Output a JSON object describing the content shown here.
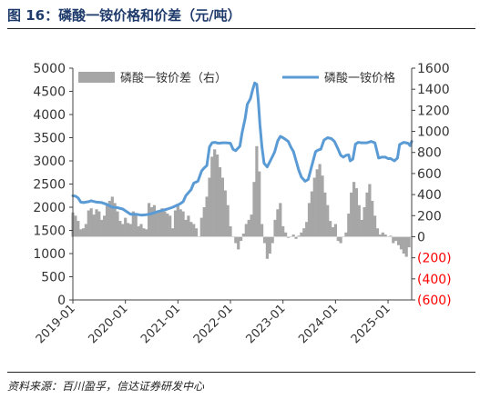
{
  "figure": {
    "title": "图 16：磷酸一铵价格和价差（元/吨）",
    "source": "资料来源：百川盈孚，信达证券研发中心"
  },
  "chart_data": {
    "type": "line",
    "legend_placement": "top",
    "grid": false,
    "colors": {
      "price": "#5b9bd5",
      "spread": "#a6a6a6",
      "negative_tick": "#ff0000"
    },
    "x_axis": {
      "ticks": [
        "2019-01",
        "2020-01",
        "2021-01",
        "2022-01",
        "2023-01",
        "2024-01",
        "2025-01"
      ],
      "range": [
        2019.0,
        2025.45
      ]
    },
    "y_left": {
      "ticks": [
        "0",
        "500",
        "1000",
        "1500",
        "2000",
        "2500",
        "3000",
        "3500",
        "4000",
        "4500",
        "5000"
      ],
      "range": [
        0,
        5000
      ]
    },
    "y_right": {
      "ticks": [
        "(600)",
        "(400)",
        "(200)",
        "0",
        "200",
        "400",
        "600",
        "800",
        "1000",
        "1200",
        "1400",
        "1600"
      ],
      "range": [
        -600,
        1600
      ]
    },
    "series": [
      {
        "name": "磷酸一铵价差（右）",
        "axis": "right",
        "kind": "bar",
        "points": [
          [
            2019.0,
            230
          ],
          [
            2019.05,
            200
          ],
          [
            2019.1,
            150
          ],
          [
            2019.15,
            70
          ],
          [
            2019.2,
            80
          ],
          [
            2019.25,
            120
          ],
          [
            2019.3,
            250
          ],
          [
            2019.35,
            270
          ],
          [
            2019.4,
            210
          ],
          [
            2019.45,
            260
          ],
          [
            2019.5,
            240
          ],
          [
            2019.55,
            160
          ],
          [
            2019.6,
            200
          ],
          [
            2019.65,
            300
          ],
          [
            2019.7,
            340
          ],
          [
            2019.75,
            380
          ],
          [
            2019.8,
            320
          ],
          [
            2019.85,
            240
          ],
          [
            2019.9,
            150
          ],
          [
            2019.95,
            120
          ],
          [
            2020.0,
            180
          ],
          [
            2020.05,
            130
          ],
          [
            2020.1,
            120
          ],
          [
            2020.15,
            240
          ],
          [
            2020.2,
            210
          ],
          [
            2020.25,
            100
          ],
          [
            2020.3,
            120
          ],
          [
            2020.35,
            80
          ],
          [
            2020.4,
            70
          ],
          [
            2020.45,
            320
          ],
          [
            2020.5,
            280
          ],
          [
            2020.55,
            300
          ],
          [
            2020.6,
            240
          ],
          [
            2020.65,
            250
          ],
          [
            2020.7,
            270
          ],
          [
            2020.75,
            240
          ],
          [
            2020.8,
            220
          ],
          [
            2020.85,
            200
          ],
          [
            2020.9,
            80
          ],
          [
            2020.95,
            250
          ],
          [
            2021.0,
            300
          ],
          [
            2021.05,
            260
          ],
          [
            2021.1,
            240
          ],
          [
            2021.15,
            160
          ],
          [
            2021.2,
            200
          ],
          [
            2021.25,
            140
          ],
          [
            2021.3,
            120
          ],
          [
            2021.35,
            80
          ],
          [
            2021.45,
            180
          ],
          [
            2021.5,
            280
          ],
          [
            2021.55,
            380
          ],
          [
            2021.6,
            560
          ],
          [
            2021.65,
            760
          ],
          [
            2021.7,
            830
          ],
          [
            2021.75,
            780
          ],
          [
            2021.8,
            660
          ],
          [
            2021.85,
            560
          ],
          [
            2021.9,
            440
          ],
          [
            2021.95,
            300
          ],
          [
            2022.0,
            100
          ],
          [
            2022.05,
            0
          ],
          [
            2022.1,
            -60
          ],
          [
            2022.15,
            -120
          ],
          [
            2022.2,
            -40
          ],
          [
            2022.25,
            30
          ],
          [
            2022.3,
            120
          ],
          [
            2022.35,
            160
          ],
          [
            2022.4,
            210
          ],
          [
            2022.45,
            520
          ],
          [
            2022.5,
            860
          ],
          [
            2022.55,
            620
          ],
          [
            2022.6,
            120
          ],
          [
            2022.65,
            -60
          ],
          [
            2022.7,
            -210
          ],
          [
            2022.75,
            -160
          ],
          [
            2022.8,
            -60
          ],
          [
            2022.85,
            160
          ],
          [
            2022.9,
            260
          ],
          [
            2022.95,
            320
          ],
          [
            2023.0,
            100
          ],
          [
            2023.05,
            40
          ],
          [
            2023.1,
            -10
          ],
          [
            2023.15,
            0
          ],
          [
            2023.2,
            20
          ],
          [
            2023.25,
            -20
          ],
          [
            2023.3,
            10
          ],
          [
            2023.35,
            40
          ],
          [
            2023.4,
            80
          ],
          [
            2023.45,
            140
          ],
          [
            2023.5,
            320
          ],
          [
            2023.55,
            430
          ],
          [
            2023.6,
            560
          ],
          [
            2023.65,
            640
          ],
          [
            2023.7,
            690
          ],
          [
            2023.75,
            580
          ],
          [
            2023.8,
            420
          ],
          [
            2023.85,
            300
          ],
          [
            2023.9,
            150
          ],
          [
            2023.95,
            90
          ],
          [
            2024.0,
            120
          ],
          [
            2024.05,
            -40
          ],
          [
            2024.1,
            -60
          ],
          [
            2024.15,
            0
          ],
          [
            2024.2,
            40
          ],
          [
            2024.25,
            220
          ],
          [
            2024.3,
            420
          ],
          [
            2024.35,
            520
          ],
          [
            2024.4,
            460
          ],
          [
            2024.45,
            300
          ],
          [
            2024.5,
            160
          ],
          [
            2024.55,
            280
          ],
          [
            2024.6,
            420
          ],
          [
            2024.65,
            500
          ],
          [
            2024.7,
            340
          ],
          [
            2024.75,
            200
          ],
          [
            2024.8,
            80
          ],
          [
            2024.85,
            20
          ],
          [
            2024.9,
            40
          ],
          [
            2024.95,
            20
          ],
          [
            2025.0,
            0
          ],
          [
            2025.05,
            10
          ],
          [
            2025.1,
            -60
          ],
          [
            2025.15,
            -40
          ],
          [
            2025.2,
            -80
          ],
          [
            2025.25,
            -120
          ],
          [
            2025.3,
            -160
          ],
          [
            2025.35,
            -190
          ],
          [
            2025.4,
            -100
          ]
        ]
      },
      {
        "name": "磷酸一铵价格",
        "axis": "left",
        "kind": "line",
        "points": [
          [
            2019.0,
            2250
          ],
          [
            2019.05,
            2240
          ],
          [
            2019.1,
            2200
          ],
          [
            2019.15,
            2110
          ],
          [
            2019.2,
            2100
          ],
          [
            2019.3,
            2120
          ],
          [
            2019.35,
            2140
          ],
          [
            2019.45,
            2110
          ],
          [
            2019.55,
            2100
          ],
          [
            2019.65,
            2060
          ],
          [
            2019.75,
            2000
          ],
          [
            2019.85,
            1990
          ],
          [
            2019.95,
            1960
          ],
          [
            2020.1,
            1850
          ],
          [
            2020.2,
            1850
          ],
          [
            2020.3,
            1830
          ],
          [
            2020.4,
            1840
          ],
          [
            2020.5,
            1860
          ],
          [
            2020.6,
            1900
          ],
          [
            2020.7,
            1930
          ],
          [
            2020.8,
            1960
          ],
          [
            2020.9,
            2000
          ],
          [
            2021.0,
            2050
          ],
          [
            2021.05,
            2080
          ],
          [
            2021.1,
            2120
          ],
          [
            2021.15,
            2250
          ],
          [
            2021.25,
            2380
          ],
          [
            2021.3,
            2520
          ],
          [
            2021.38,
            2560
          ],
          [
            2021.45,
            2780
          ],
          [
            2021.5,
            2850
          ],
          [
            2021.55,
            2900
          ],
          [
            2021.6,
            3300
          ],
          [
            2021.65,
            3390
          ],
          [
            2021.7,
            3400
          ],
          [
            2021.78,
            3380
          ],
          [
            2021.85,
            3390
          ],
          [
            2021.92,
            3390
          ],
          [
            2022.0,
            3380
          ],
          [
            2022.05,
            3250
          ],
          [
            2022.1,
            3220
          ],
          [
            2022.18,
            3320
          ],
          [
            2022.22,
            3600
          ],
          [
            2022.28,
            3920
          ],
          [
            2022.32,
            4220
          ],
          [
            2022.38,
            4340
          ],
          [
            2022.42,
            4520
          ],
          [
            2022.46,
            4680
          ],
          [
            2022.5,
            4650
          ],
          [
            2022.53,
            4300
          ],
          [
            2022.56,
            3800
          ],
          [
            2022.6,
            3300
          ],
          [
            2022.64,
            2950
          ],
          [
            2022.7,
            2870
          ],
          [
            2022.78,
            3050
          ],
          [
            2022.84,
            3190
          ],
          [
            2022.9,
            3430
          ],
          [
            2022.95,
            3530
          ],
          [
            2023.0,
            3500
          ],
          [
            2023.05,
            3460
          ],
          [
            2023.1,
            3420
          ],
          [
            2023.15,
            3300
          ],
          [
            2023.2,
            3200
          ],
          [
            2023.25,
            3000
          ],
          [
            2023.3,
            2800
          ],
          [
            2023.35,
            2650
          ],
          [
            2023.42,
            2560
          ],
          [
            2023.48,
            2600
          ],
          [
            2023.55,
            2900
          ],
          [
            2023.62,
            3200
          ],
          [
            2023.68,
            3240
          ],
          [
            2023.72,
            3250
          ],
          [
            2023.78,
            3450
          ],
          [
            2023.85,
            3500
          ],
          [
            2023.92,
            3480
          ],
          [
            2023.98,
            3420
          ],
          [
            2024.05,
            3250
          ],
          [
            2024.1,
            3120
          ],
          [
            2024.15,
            3080
          ],
          [
            2024.2,
            3120
          ],
          [
            2024.25,
            3130
          ],
          [
            2024.28,
            3000
          ],
          [
            2024.33,
            3040
          ],
          [
            2024.38,
            3360
          ],
          [
            2024.43,
            3400
          ],
          [
            2024.5,
            3390
          ],
          [
            2024.55,
            3390
          ],
          [
            2024.6,
            3390
          ],
          [
            2024.68,
            3420
          ],
          [
            2024.75,
            3390
          ],
          [
            2024.82,
            3060
          ],
          [
            2024.88,
            3080
          ],
          [
            2024.95,
            3080
          ],
          [
            2025.0,
            3050
          ],
          [
            2025.05,
            3050
          ],
          [
            2025.12,
            3000
          ],
          [
            2025.18,
            3060
          ],
          [
            2025.22,
            3350
          ],
          [
            2025.3,
            3400
          ],
          [
            2025.38,
            3380
          ],
          [
            2025.42,
            3330
          ],
          [
            2025.45,
            3420
          ]
        ]
      }
    ]
  }
}
